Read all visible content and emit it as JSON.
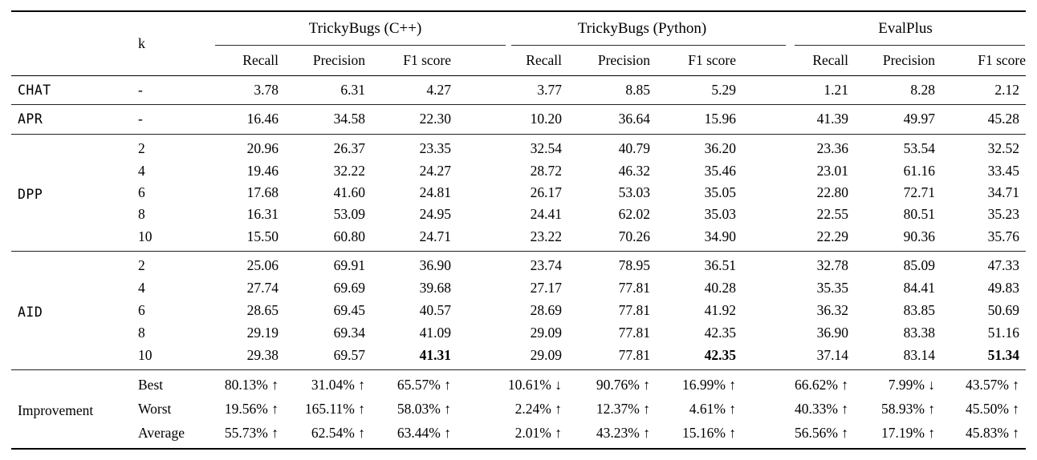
{
  "table": {
    "k_header": "k",
    "groups": [
      {
        "label": "TrickyBugs (C++)",
        "metrics": [
          "Recall",
          "Precision",
          "F1 score"
        ]
      },
      {
        "label": "TrickyBugs (Python)",
        "metrics": [
          "Recall",
          "Precision",
          "F1 score"
        ]
      },
      {
        "label": "EvalPlus",
        "metrics": [
          "Recall",
          "Precision",
          "F1 score"
        ]
      }
    ],
    "sections": [
      {
        "label": "CHAT",
        "label_font": "mono",
        "row_class": "row-tall-a",
        "rows": [
          {
            "k": "-",
            "cells": [
              "3.78",
              "6.31",
              "4.27",
              "3.77",
              "8.85",
              "5.29",
              "1.21",
              "8.28",
              "2.12"
            ]
          }
        ]
      },
      {
        "label": "APR",
        "label_font": "mono",
        "row_class": "row-tall-b",
        "rows": [
          {
            "k": "-",
            "cells": [
              "16.46",
              "34.58",
              "22.30",
              "10.20",
              "36.64",
              "15.96",
              "41.39",
              "49.97",
              "45.28"
            ]
          }
        ]
      },
      {
        "label": "DPP",
        "label_font": "mono",
        "row_class": "row-std-a",
        "rows": [
          {
            "k": "2",
            "cells": [
              "20.96",
              "26.37",
              "23.35",
              "32.54",
              "40.79",
              "36.20",
              "23.36",
              "53.54",
              "32.52"
            ]
          },
          {
            "k": "4",
            "cells": [
              "19.46",
              "32.22",
              "24.27",
              "28.72",
              "46.32",
              "35.46",
              "23.01",
              "61.16",
              "33.45"
            ]
          },
          {
            "k": "6",
            "cells": [
              "17.68",
              "41.60",
              "24.81",
              "26.17",
              "53.03",
              "35.05",
              "22.80",
              "72.71",
              "34.71"
            ]
          },
          {
            "k": "8",
            "cells": [
              "16.31",
              "53.09",
              "24.95",
              "24.41",
              "62.02",
              "35.03",
              "22.55",
              "80.51",
              "35.23"
            ]
          },
          {
            "k": "10",
            "cells": [
              "15.50",
              "60.80",
              "24.71",
              "23.22",
              "70.26",
              "34.90",
              "22.29",
              "90.36",
              "35.76"
            ]
          }
        ]
      },
      {
        "label": "AID",
        "label_font": "mono",
        "row_class": "row-std-b",
        "rows": [
          {
            "k": "2",
            "cells": [
              "25.06",
              "69.91",
              "36.90",
              "23.74",
              "78.95",
              "36.51",
              "32.78",
              "85.09",
              "47.33"
            ]
          },
          {
            "k": "4",
            "cells": [
              "27.74",
              "69.69",
              "39.68",
              "27.17",
              "77.81",
              "40.28",
              "35.35",
              "84.41",
              "49.83"
            ]
          },
          {
            "k": "6",
            "cells": [
              "28.65",
              "69.45",
              "40.57",
              "28.69",
              "77.81",
              "41.92",
              "36.32",
              "83.85",
              "50.69"
            ]
          },
          {
            "k": "8",
            "cells": [
              "29.19",
              "69.34",
              "41.09",
              "29.09",
              "77.81",
              "42.35",
              "36.90",
              "83.38",
              "51.16"
            ]
          },
          {
            "k": "10",
            "cells": [
              "29.38",
              "69.57",
              {
                "text": "41.31",
                "bold": true
              },
              "29.09",
              "77.81",
              {
                "text": "42.35",
                "bold": true
              },
              "37.14",
              "83.14",
              {
                "text": "51.34",
                "bold": true
              }
            ]
          }
        ]
      },
      {
        "label": "Improvement",
        "label_font": "serif",
        "row_class": "row-imp",
        "rows": [
          {
            "k": "Best",
            "cells": [
              "80.13% ↑",
              "31.04% ↑",
              "65.57% ↑",
              "10.61% ↓",
              "90.76% ↑",
              "16.99% ↑",
              "66.62% ↑",
              "7.99% ↓",
              "43.57% ↑"
            ]
          },
          {
            "k": "Worst",
            "cells": [
              "19.56% ↑",
              "165.11% ↑",
              "58.03% ↑",
              "2.24% ↑",
              "12.37% ↑",
              "4.61% ↑",
              "40.33% ↑",
              "58.93% ↑",
              "45.50% ↑"
            ]
          },
          {
            "k": "Average",
            "cells": [
              "55.73% ↑",
              "62.54% ↑",
              "63.44% ↑",
              "2.01% ↑",
              "43.23% ↑",
              "15.16% ↑",
              "56.56% ↑",
              "17.19% ↑",
              "45.83% ↑"
            ]
          }
        ]
      }
    ]
  }
}
